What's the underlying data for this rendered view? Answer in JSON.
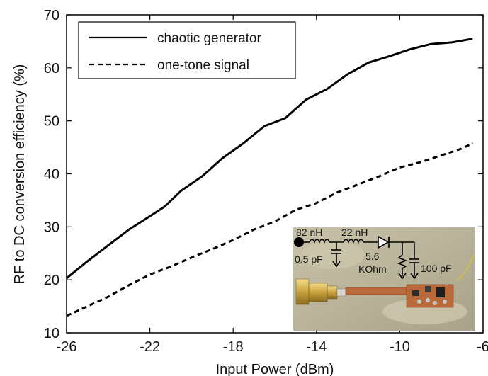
{
  "chart_data": {
    "type": "line",
    "xlabel": "Input Power (dBm)",
    "ylabel": "RF to DC conversion efficiency (%)",
    "xlim": [
      -26,
      -6
    ],
    "ylim": [
      10,
      70
    ],
    "xticks": [
      -26,
      -22,
      -18,
      -14,
      -10,
      -6
    ],
    "yticks": [
      10,
      20,
      30,
      40,
      50,
      60,
      70
    ],
    "grid": false,
    "legend_position": "top-left",
    "series": [
      {
        "name": "chaotic generator",
        "style": "solid",
        "color": "#000000",
        "x": [
          -26,
          -25,
          -24,
          -23,
          -22,
          -21.3,
          -20.5,
          -19.5,
          -18.5,
          -17.5,
          -16.5,
          -15.5,
          -14.5,
          -13.5,
          -12.5,
          -11.5,
          -10.5,
          -9.5,
          -8.5,
          -7.5,
          -6.5
        ],
        "y": [
          20.3,
          23.5,
          26.5,
          29.5,
          32.0,
          33.8,
          36.8,
          39.5,
          43.0,
          45.8,
          49.0,
          50.5,
          54.0,
          56.0,
          58.8,
          61.0,
          62.2,
          63.5,
          64.5,
          64.8,
          65.5
        ]
      },
      {
        "name": "one-tone signal",
        "style": "dashed",
        "color": "#000000",
        "x": [
          -26,
          -25,
          -24,
          -23,
          -22,
          -21,
          -20,
          -19,
          -18,
          -17,
          -16,
          -15,
          -14,
          -13,
          -12,
          -11,
          -10,
          -9,
          -8,
          -7,
          -6.5
        ],
        "y": [
          13.2,
          15.0,
          16.8,
          19.0,
          21.0,
          22.5,
          24.2,
          25.8,
          27.5,
          29.5,
          31.0,
          33.2,
          34.5,
          36.5,
          38.0,
          39.5,
          41.2,
          42.2,
          43.5,
          44.8,
          45.8
        ]
      }
    ]
  },
  "inset": {
    "labels": [
      "82 nH",
      "22 nH",
      "0.5 pF",
      "5.6",
      "KOhm",
      "100 pF"
    ]
  }
}
